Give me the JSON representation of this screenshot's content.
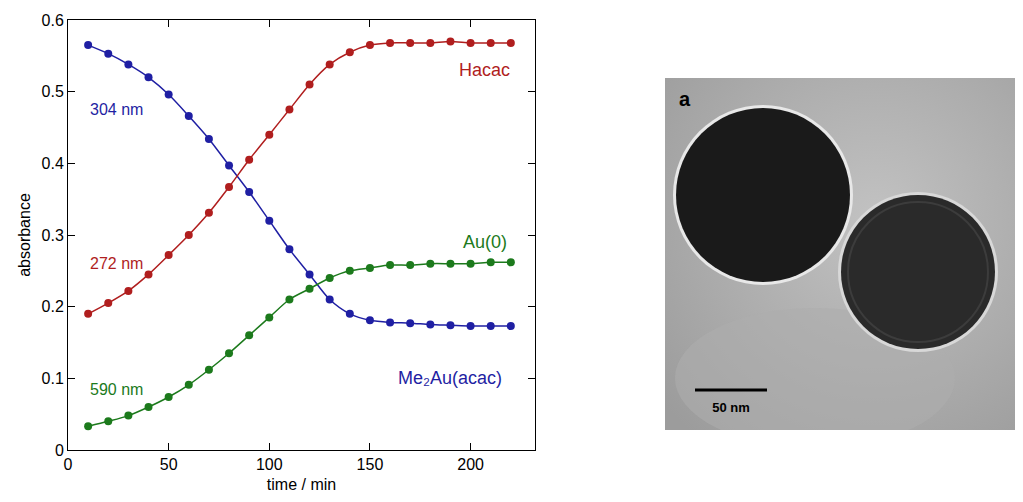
{
  "chart_data": {
    "type": "scatter",
    "marker": "circle",
    "line_style": "solid",
    "grid": false,
    "x_label": "time / min",
    "y_label": "absorbance",
    "x": [
      10,
      20,
      30,
      40,
      50,
      60,
      70,
      80,
      90,
      100,
      110,
      120,
      130,
      140,
      150,
      160,
      170,
      180,
      190,
      200,
      210,
      220
    ],
    "xlim": [
      0,
      232
    ],
    "xticks": [
      0,
      50,
      100,
      150,
      200
    ],
    "ylim": [
      0,
      0.6
    ],
    "yticks": [
      0,
      0.1,
      0.2,
      0.3,
      0.4,
      0.5,
      0.6
    ],
    "series": [
      {
        "name": "Me₂Au(acac)",
        "wavelength": "304 nm",
        "color": "#1f1fa3",
        "values": [
          0.565,
          0.553,
          0.538,
          0.52,
          0.496,
          0.466,
          0.434,
          0.397,
          0.36,
          0.32,
          0.28,
          0.245,
          0.21,
          0.19,
          0.181,
          0.178,
          0.177,
          0.175,
          0.174,
          0.173,
          0.173,
          0.173
        ],
        "name_xy": [
          190,
          0.1
        ],
        "wavelength_xy": [
          24,
          0.475
        ]
      },
      {
        "name": "Hacac",
        "wavelength": "272 nm",
        "color": "#b01e1e",
        "values": [
          0.19,
          0.205,
          0.222,
          0.245,
          0.272,
          0.3,
          0.331,
          0.367,
          0.405,
          0.44,
          0.475,
          0.51,
          0.538,
          0.555,
          0.565,
          0.568,
          0.568,
          0.568,
          0.57,
          0.568,
          0.568,
          0.568
        ],
        "name_xy": [
          207,
          0.53
        ],
        "wavelength_xy": [
          24,
          0.26
        ]
      },
      {
        "name": "Au(0)",
        "wavelength": "590 nm",
        "color": "#1c7a1c",
        "values": [
          0.033,
          0.04,
          0.048,
          0.06,
          0.074,
          0.091,
          0.112,
          0.135,
          0.16,
          0.185,
          0.21,
          0.225,
          0.24,
          0.25,
          0.254,
          0.258,
          0.258,
          0.26,
          0.26,
          0.26,
          0.262,
          0.262
        ],
        "name_xy": [
          207,
          0.29
        ],
        "wavelength_xy": [
          24,
          0.085
        ]
      }
    ]
  },
  "image": {
    "panel_label": "a",
    "scale_bar": "50 nm"
  }
}
